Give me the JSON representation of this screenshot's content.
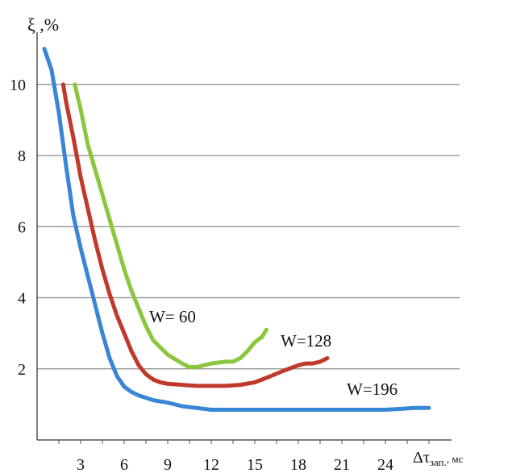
{
  "chart_data": {
    "type": "line",
    "title": "",
    "ylabel": "ξ ,%",
    "xlabel_main": "Δτ",
    "xlabel_sub": "зап.",
    "xlabel_unit": ", мс",
    "ylim": [
      0,
      11
    ],
    "xlim": [
      0,
      27.5
    ],
    "yticks": [
      2,
      4,
      6,
      8,
      10
    ],
    "xticks": [
      3,
      6,
      9,
      12,
      15,
      18,
      21,
      24
    ],
    "grid": "horizontal",
    "series": [
      {
        "name": "W= 60",
        "color": "#8cc63f",
        "x": [
          2.6,
          3,
          3.5,
          4,
          4.5,
          5,
          5.5,
          6,
          6.5,
          7,
          7.5,
          8,
          9,
          10,
          10.5,
          11,
          11.5,
          12,
          13,
          13.5,
          14,
          14.5,
          15,
          15.5,
          15.8
        ],
        "y": [
          10,
          9.3,
          8.3,
          7.6,
          6.9,
          6.2,
          5.5,
          4.8,
          4.2,
          3.7,
          3.2,
          2.8,
          2.4,
          2.15,
          2.05,
          2.05,
          2.1,
          2.15,
          2.2,
          2.2,
          2.3,
          2.5,
          2.75,
          2.9,
          3.1
        ]
      },
      {
        "name": "W=128",
        "color": "#c0392b",
        "x": [
          1.8,
          2,
          2.5,
          3,
          3.5,
          4,
          4.5,
          5,
          5.5,
          6,
          6.5,
          7,
          7.5,
          8,
          8.5,
          9,
          10,
          11,
          12,
          13,
          14,
          15,
          16,
          17,
          18,
          18.5,
          19,
          19.5,
          20
        ],
        "y": [
          10,
          9.5,
          8.5,
          7.4,
          6.5,
          5.6,
          4.8,
          4.1,
          3.5,
          3,
          2.5,
          2.1,
          1.85,
          1.7,
          1.62,
          1.58,
          1.55,
          1.52,
          1.52,
          1.52,
          1.55,
          1.62,
          1.78,
          1.95,
          2.1,
          2.15,
          2.15,
          2.2,
          2.3
        ]
      },
      {
        "name": "W=196",
        "color": "#3a86d6",
        "x": [
          0.5,
          1,
          1.5,
          2,
          2.5,
          3,
          3.5,
          4,
          4.5,
          5,
          5.5,
          6,
          6.5,
          7,
          8,
          9,
          10,
          11,
          12,
          14,
          16,
          18,
          20,
          22,
          24,
          26,
          27
        ],
        "y": [
          11,
          10.4,
          9.2,
          7.7,
          6.3,
          5.4,
          4.6,
          3.8,
          3,
          2.3,
          1.8,
          1.5,
          1.35,
          1.25,
          1.12,
          1.05,
          0.95,
          0.9,
          0.85,
          0.85,
          0.85,
          0.85,
          0.85,
          0.85,
          0.85,
          0.9,
          0.9
        ]
      }
    ]
  }
}
